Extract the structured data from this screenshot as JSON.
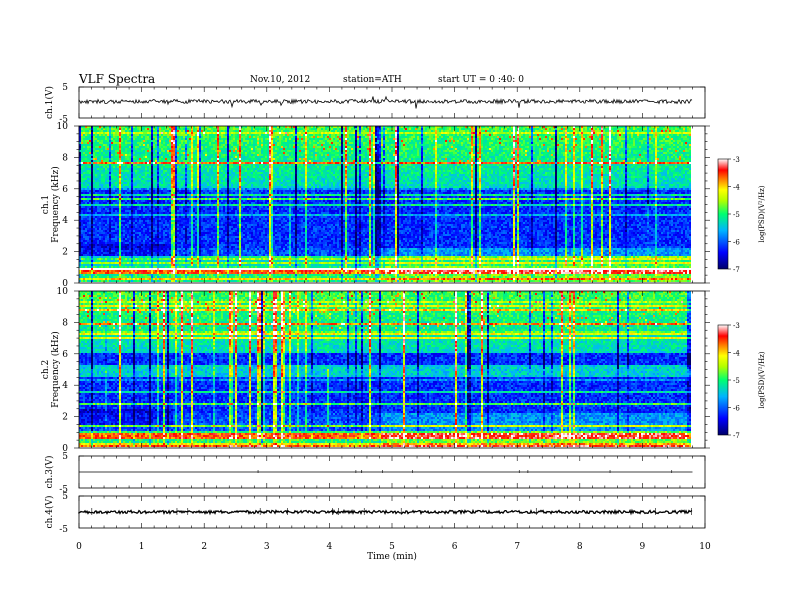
{
  "header": {
    "title": "VLF  Spectra",
    "date": "Nov.10, 2012",
    "station": "station=ATH",
    "start": "start  UT =   0 :40: 0"
  },
  "chart_data": [
    {
      "type": "line",
      "ylabel": "ch.1(V)",
      "ylim": [
        -5,
        5
      ],
      "y_ticks": [
        "5",
        "-5"
      ],
      "xlim": [
        0,
        10
      ],
      "description_values": {
        "baseline": 0
      }
    },
    {
      "type": "heatmap",
      "ylabel": "ch.1\nFrequency (kHz)",
      "ylim": [
        0,
        10
      ],
      "y_ticks": [
        "0",
        "2",
        "4",
        "6",
        "8",
        "10"
      ],
      "xlim": [
        0,
        10
      ],
      "colorbar": {
        "label": "log(PSD)(V²/Hz)",
        "range": [
          -7,
          -3
        ],
        "ticks": [
          "-3",
          "-4",
          "-5",
          "-6",
          "-7"
        ],
        "colors": [
          "#000080",
          "#0000ff",
          "#00c0ff",
          "#00ff80",
          "#ffff00",
          "#ff8000",
          "#ff0000",
          "#ffffff"
        ]
      }
    },
    {
      "type": "heatmap",
      "ylabel": "ch.2\nFrequency (kHz)",
      "ylim": [
        0,
        10
      ],
      "y_ticks": [
        "0",
        "2",
        "4",
        "6",
        "8",
        "10"
      ],
      "xlim": [
        0,
        10
      ],
      "colorbar": {
        "label": "log(PSD)(V²/Hz)",
        "range": [
          -7,
          -3
        ],
        "ticks": [
          "-3",
          "-4",
          "-5",
          "-6",
          "-7"
        ]
      }
    },
    {
      "type": "line",
      "ylabel": "ch.3(V)",
      "ylim": [
        -5,
        5
      ],
      "y_ticks": [
        "5",
        "-5"
      ],
      "xlim": [
        0,
        10
      ]
    },
    {
      "type": "line",
      "ylabel": "ch.4(V)",
      "ylim": [
        -5,
        5
      ],
      "y_ticks": [
        "5",
        "-5"
      ],
      "xlim": [
        0,
        10
      ]
    }
  ],
  "x_axis": {
    "label": "Time  (min)",
    "ticks": [
      "0",
      "1",
      "2",
      "3",
      "4",
      "5",
      "6",
      "7",
      "8",
      "9",
      "10"
    ],
    "data_end": 9.8
  },
  "labels": {
    "ch1_volt": "ch.1(V)",
    "ch1_freq_a": "ch.1",
    "ch1_freq_b": "Frequency (kHz)",
    "ch2_freq_a": "ch.2",
    "ch2_freq_b": "Frequency (kHz)",
    "ch3_volt": "ch.3(V)",
    "ch4_volt": "ch.4(V)",
    "colorbar_label": "log(PSD)(V²/Hz)"
  }
}
